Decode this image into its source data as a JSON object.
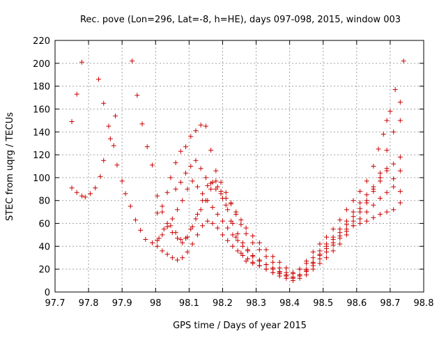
{
  "chart_data": {
    "type": "scatter",
    "title": "Rec. pove (Lon=296, Lat=-8, h=HE), days 097-098, 2015, window 003",
    "xlabel": "GPS time / Days of year 2015",
    "ylabel": "STEC from uqrg / TECUs",
    "xlim": [
      97.7,
      98.8
    ],
    "ylim": [
      0,
      220
    ],
    "x_ticks": [
      "97.7",
      "97.8",
      "97.9",
      "98",
      "98.1",
      "98.2",
      "98.3",
      "98.4",
      "98.5",
      "98.6",
      "98.7",
      "98.8"
    ],
    "y_ticks": [
      "0",
      "20",
      "40",
      "60",
      "80",
      "100",
      "120",
      "140",
      "160",
      "180",
      "200",
      "220"
    ],
    "grid": true,
    "marker": "+",
    "marker_color": "#cc0000",
    "series": [
      {
        "points": [
          [
            97.75,
            149
          ],
          [
            97.765,
            173
          ],
          [
            97.78,
            201
          ],
          [
            97.83,
            186
          ],
          [
            97.845,
            165
          ],
          [
            97.86,
            145
          ],
          [
            97.875,
            128
          ],
          [
            97.885,
            111
          ],
          [
            97.9,
            97
          ],
          [
            97.91,
            86
          ],
          [
            97.925,
            75
          ],
          [
            97.94,
            63
          ],
          [
            97.955,
            54
          ],
          [
            97.97,
            46
          ],
          [
            97.99,
            43
          ],
          [
            98.01,
            47
          ],
          [
            98.025,
            55
          ],
          [
            98.045,
            58
          ],
          [
            98.06,
            52
          ],
          [
            98.075,
            46
          ],
          [
            98.09,
            47
          ],
          [
            98.105,
            55
          ],
          [
            98.12,
            64
          ],
          [
            98.135,
            72
          ],
          [
            98.15,
            80
          ],
          [
            98.165,
            90
          ],
          [
            98.18,
            97
          ],
          [
            98.195,
            88
          ],
          [
            98.21,
            76
          ],
          [
            98.225,
            62
          ],
          [
            98.24,
            48
          ],
          [
            98.255,
            34
          ],
          [
            98.27,
            27
          ],
          [
            98.29,
            25
          ],
          [
            98.31,
            23
          ],
          [
            98.33,
            20
          ],
          [
            98.35,
            17
          ],
          [
            98.37,
            16
          ],
          [
            98.39,
            14
          ],
          [
            98.41,
            16
          ],
          [
            98.43,
            20
          ],
          [
            98.45,
            27
          ],
          [
            98.47,
            35
          ],
          [
            98.49,
            42
          ],
          [
            98.51,
            48
          ],
          [
            98.53,
            55
          ],
          [
            98.55,
            63
          ],
          [
            98.57,
            72
          ],
          [
            98.59,
            80
          ],
          [
            98.61,
            88
          ],
          [
            98.63,
            97
          ],
          [
            98.65,
            110
          ],
          [
            98.665,
            125
          ],
          [
            98.68,
            138
          ],
          [
            98.69,
            150
          ],
          [
            98.7,
            158
          ],
          [
            98.715,
            177
          ],
          [
            98.73,
            166
          ],
          [
            98.74,
            202
          ]
        ]
      },
      {
        "points": [
          [
            97.75,
            91
          ],
          [
            97.765,
            87
          ],
          [
            97.78,
            84
          ],
          [
            97.79,
            83
          ],
          [
            97.805,
            86
          ],
          [
            97.82,
            91
          ],
          [
            97.835,
            101
          ],
          [
            97.845,
            115
          ],
          [
            97.865,
            134
          ],
          [
            97.88,
            154
          ],
          [
            97.93,
            202
          ],
          [
            97.945,
            172
          ],
          [
            97.96,
            147
          ],
          [
            97.975,
            127
          ],
          [
            97.99,
            111
          ],
          [
            98.005,
            84
          ],
          [
            98.02,
            70
          ],
          [
            98.035,
            60
          ],
          [
            98.05,
            52
          ],
          [
            98.065,
            47
          ],
          [
            98.08,
            43
          ],
          [
            98.095,
            48
          ],
          [
            98.11,
            57
          ],
          [
            98.125,
            68
          ],
          [
            98.14,
            80
          ],
          [
            98.155,
            93
          ],
          [
            98.17,
            96
          ],
          [
            98.185,
            92
          ],
          [
            98.2,
            82
          ],
          [
            98.215,
            72
          ],
          [
            98.23,
            60
          ],
          [
            98.245,
            51
          ],
          [
            98.26,
            43
          ],
          [
            98.275,
            37
          ],
          [
            98.29,
            31
          ],
          [
            98.31,
            27
          ],
          [
            98.33,
            24
          ],
          [
            98.35,
            21
          ],
          [
            98.37,
            18
          ],
          [
            98.39,
            15
          ],
          [
            98.41,
            13
          ],
          [
            98.43,
            15
          ],
          [
            98.45,
            19
          ],
          [
            98.47,
            25
          ],
          [
            98.49,
            33
          ],
          [
            98.51,
            40
          ],
          [
            98.53,
            46
          ],
          [
            98.55,
            52
          ],
          [
            98.57,
            59
          ],
          [
            98.59,
            66
          ],
          [
            98.61,
            73
          ],
          [
            98.63,
            80
          ],
          [
            98.65,
            90
          ],
          [
            98.67,
            100
          ],
          [
            98.69,
            108
          ],
          [
            98.71,
            99
          ],
          [
            98.73,
            106
          ]
        ]
      },
      {
        "points": [
          [
            98.005,
            69
          ],
          [
            98.02,
            75
          ],
          [
            98.035,
            87
          ],
          [
            98.045,
            100
          ],
          [
            98.06,
            113
          ],
          [
            98.075,
            123
          ],
          [
            98.09,
            127
          ],
          [
            98.105,
            136
          ],
          [
            98.12,
            141
          ],
          [
            98.135,
            146
          ],
          [
            98.15,
            145
          ],
          [
            98.165,
            124
          ],
          [
            98.18,
            106
          ],
          [
            98.195,
            96
          ],
          [
            98.21,
            87
          ],
          [
            98.225,
            78
          ],
          [
            98.24,
            68
          ],
          [
            98.255,
            59
          ],
          [
            98.27,
            51
          ],
          [
            98.29,
            43
          ],
          [
            98.31,
            37
          ],
          [
            98.33,
            31
          ],
          [
            98.35,
            26
          ],
          [
            98.37,
            21
          ],
          [
            98.39,
            17
          ],
          [
            98.41,
            13
          ],
          [
            98.43,
            15
          ],
          [
            98.45,
            20
          ],
          [
            98.47,
            26
          ],
          [
            98.49,
            32
          ],
          [
            98.51,
            38
          ],
          [
            98.53,
            43
          ],
          [
            98.55,
            49
          ],
          [
            98.57,
            55
          ],
          [
            98.59,
            62
          ],
          [
            98.61,
            70
          ],
          [
            98.63,
            78
          ],
          [
            98.65,
            88
          ],
          [
            98.67,
            97
          ],
          [
            98.69,
            106
          ],
          [
            98.71,
            112
          ],
          [
            98.73,
            118
          ]
        ]
      },
      {
        "points": [
          [
            98.005,
            40
          ],
          [
            98.02,
            36
          ],
          [
            98.035,
            33
          ],
          [
            98.05,
            30
          ],
          [
            98.065,
            28
          ],
          [
            98.08,
            30
          ],
          [
            98.095,
            35
          ],
          [
            98.11,
            42
          ],
          [
            98.125,
            50
          ],
          [
            98.14,
            58
          ],
          [
            98.155,
            62
          ],
          [
            98.17,
            60
          ],
          [
            98.185,
            56
          ],
          [
            98.2,
            50
          ],
          [
            98.215,
            45
          ],
          [
            98.23,
            40
          ],
          [
            98.245,
            36
          ],
          [
            98.26,
            32
          ],
          [
            98.275,
            29
          ],
          [
            98.29,
            26
          ],
          [
            98.31,
            23
          ],
          [
            98.33,
            20
          ],
          [
            98.35,
            17
          ],
          [
            98.37,
            14
          ],
          [
            98.39,
            12
          ],
          [
            98.41,
            10
          ],
          [
            98.43,
            12
          ],
          [
            98.45,
            15
          ],
          [
            98.47,
            20
          ],
          [
            98.49,
            25
          ],
          [
            98.51,
            30
          ],
          [
            98.53,
            36
          ],
          [
            98.55,
            42
          ],
          [
            98.57,
            50
          ],
          [
            98.59,
            58
          ],
          [
            98.61,
            60
          ],
          [
            98.63,
            62
          ],
          [
            98.65,
            65
          ],
          [
            98.67,
            68
          ],
          [
            98.69,
            70
          ],
          [
            98.71,
            72
          ],
          [
            98.73,
            78
          ]
        ]
      },
      {
        "points": [
          [
            98.005,
            45
          ],
          [
            98.02,
            50
          ],
          [
            98.035,
            57
          ],
          [
            98.05,
            64
          ],
          [
            98.065,
            72
          ],
          [
            98.08,
            80
          ],
          [
            98.095,
            90
          ],
          [
            98.11,
            97
          ],
          [
            98.125,
            92
          ],
          [
            98.14,
            86
          ],
          [
            98.155,
            80
          ],
          [
            98.17,
            74
          ],
          [
            98.185,
            68
          ],
          [
            98.2,
            62
          ],
          [
            98.215,
            56
          ],
          [
            98.23,
            50
          ],
          [
            98.245,
            45
          ],
          [
            98.26,
            40
          ],
          [
            98.275,
            36
          ],
          [
            98.29,
            32
          ],
          [
            98.31,
            28
          ],
          [
            98.33,
            24
          ],
          [
            98.35,
            20
          ],
          [
            98.37,
            17
          ],
          [
            98.39,
            14
          ],
          [
            98.41,
            12
          ],
          [
            98.43,
            14
          ],
          [
            98.45,
            18
          ],
          [
            98.47,
            23
          ],
          [
            98.49,
            29
          ],
          [
            98.51,
            35
          ],
          [
            98.53,
            41
          ],
          [
            98.55,
            47
          ],
          [
            98.57,
            53
          ],
          [
            98.59,
            58
          ],
          [
            98.61,
            64
          ],
          [
            98.63,
            70
          ],
          [
            98.65,
            76
          ],
          [
            98.67,
            82
          ],
          [
            98.69,
            87
          ],
          [
            98.71,
            92
          ],
          [
            98.73,
            88
          ]
        ]
      },
      {
        "points": [
          [
            98.06,
            90
          ],
          [
            98.075,
            96
          ],
          [
            98.09,
            104
          ],
          [
            98.105,
            110
          ],
          [
            98.12,
            115
          ],
          [
            98.135,
            108
          ],
          [
            98.15,
            100
          ],
          [
            98.165,
            95
          ],
          [
            98.18,
            90
          ],
          [
            98.195,
            86
          ],
          [
            98.21,
            82
          ],
          [
            98.225,
            77
          ],
          [
            98.24,
            70
          ],
          [
            98.255,
            63
          ],
          [
            98.27,
            56
          ],
          [
            98.29,
            49
          ],
          [
            98.31,
            43
          ],
          [
            98.33,
            37
          ],
          [
            98.35,
            31
          ],
          [
            98.37,
            26
          ],
          [
            98.39,
            21
          ],
          [
            98.41,
            17
          ],
          [
            98.43,
            20
          ],
          [
            98.45,
            25
          ],
          [
            98.47,
            30
          ],
          [
            98.49,
            36
          ],
          [
            98.51,
            42
          ],
          [
            98.53,
            48
          ],
          [
            98.55,
            55
          ],
          [
            98.57,
            62
          ],
          [
            98.59,
            70
          ],
          [
            98.61,
            78
          ],
          [
            98.63,
            85
          ],
          [
            98.65,
            92
          ],
          [
            98.67,
            104
          ],
          [
            98.69,
            124
          ],
          [
            98.71,
            140
          ],
          [
            98.73,
            150
          ]
        ]
      }
    ]
  }
}
